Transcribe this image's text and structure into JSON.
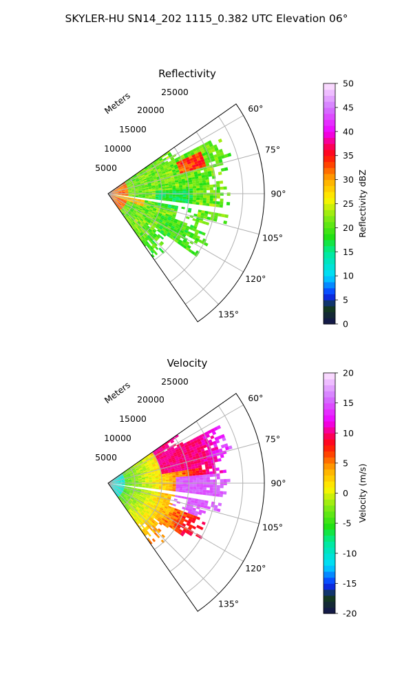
{
  "suptitle": "SKYLER-HU  SN14_202  1115_0.382 UTC Elevation 06°",
  "colors": {
    "grid": "#b0b0b0",
    "axis": "#000000"
  },
  "chart_data": [
    {
      "type": "heatmap",
      "projection": "polar-sector",
      "title": "Reflectivity",
      "radial_label": "Meters",
      "radial_ticks": [
        "5000",
        "10000",
        "15000",
        "20000",
        "25000"
      ],
      "radial_tick_values": [
        5000,
        10000,
        15000,
        20000,
        25000
      ],
      "radial_max": 29000,
      "angle_ticks": [
        "60°",
        "75°",
        "90°",
        "105°",
        "120°",
        "135°"
      ],
      "angle_tick_values": [
        60,
        75,
        90,
        105,
        120,
        135
      ],
      "angle_range": [
        55,
        145
      ],
      "grid": true,
      "colorbar": {
        "label": "Reflectivity dBZ",
        "range": [
          0,
          50
        ],
        "ticks": [
          "0",
          "5",
          "10",
          "15",
          "20",
          "25",
          "30",
          "35",
          "40",
          "45",
          "50"
        ],
        "tick_values": [
          0,
          5,
          10,
          15,
          20,
          25,
          30,
          35,
          40,
          45,
          50
        ]
      },
      "field": "reflectivity"
    },
    {
      "type": "heatmap",
      "projection": "polar-sector",
      "title": "Velocity",
      "radial_label": "Meters",
      "radial_ticks": [
        "5000",
        "10000",
        "15000",
        "20000",
        "25000"
      ],
      "radial_tick_values": [
        5000,
        10000,
        15000,
        20000,
        25000
      ],
      "radial_max": 29000,
      "angle_ticks": [
        "60°",
        "75°",
        "90°",
        "105°",
        "120°",
        "135°"
      ],
      "angle_tick_values": [
        60,
        75,
        90,
        105,
        120,
        135
      ],
      "angle_range": [
        55,
        145
      ],
      "grid": true,
      "colorbar": {
        "label": "Velocity (m/s)",
        "range": [
          -20,
          20
        ],
        "ticks": [
          "-20",
          "-15",
          "-10",
          "-5",
          "0",
          "5",
          "10",
          "15",
          "20"
        ],
        "tick_values": [
          -20,
          -15,
          -10,
          -5,
          0,
          5,
          10,
          15,
          20
        ]
      },
      "field": "velocity"
    }
  ]
}
